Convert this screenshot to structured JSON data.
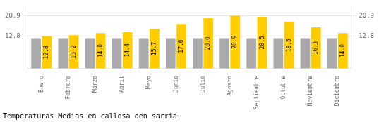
{
  "chart_data": {
    "type": "bar",
    "title": "Temperaturas Medias en callosa den sarria",
    "categories": [
      "Enero",
      "Febrero",
      "Marzo",
      "Abril",
      "Mayo",
      "Junio",
      "Julio",
      "Agosto",
      "Septiembre",
      "Octubre",
      "Noviembre",
      "Diciembre"
    ],
    "series": [
      {
        "color": "#AAAAAA",
        "values": [
          12.0,
          12.0,
          12.0,
          12.0,
          12.0,
          12.0,
          12.0,
          12.0,
          12.0,
          12.0,
          12.0,
          12.0
        ]
      },
      {
        "color": "#FFCC00",
        "values": [
          12.8,
          13.2,
          14.0,
          14.4,
          15.7,
          17.6,
          20.0,
          20.9,
          20.5,
          18.5,
          16.3,
          14.0
        ],
        "value_labels": [
          "12.8",
          "13.2",
          "14.0",
          "14.4",
          "15.7",
          "17.6",
          "20.0",
          "20.9",
          "20.5",
          "18.5",
          "16.3",
          "14.0"
        ],
        "data_labels": true
      }
    ],
    "ylim": [
      0,
      24.8
    ],
    "yticks": [
      12.8,
      20.9
    ],
    "y2lim": [
      0,
      24.8
    ],
    "y2ticks": [
      12.8,
      20.9
    ],
    "grid": true
  }
}
